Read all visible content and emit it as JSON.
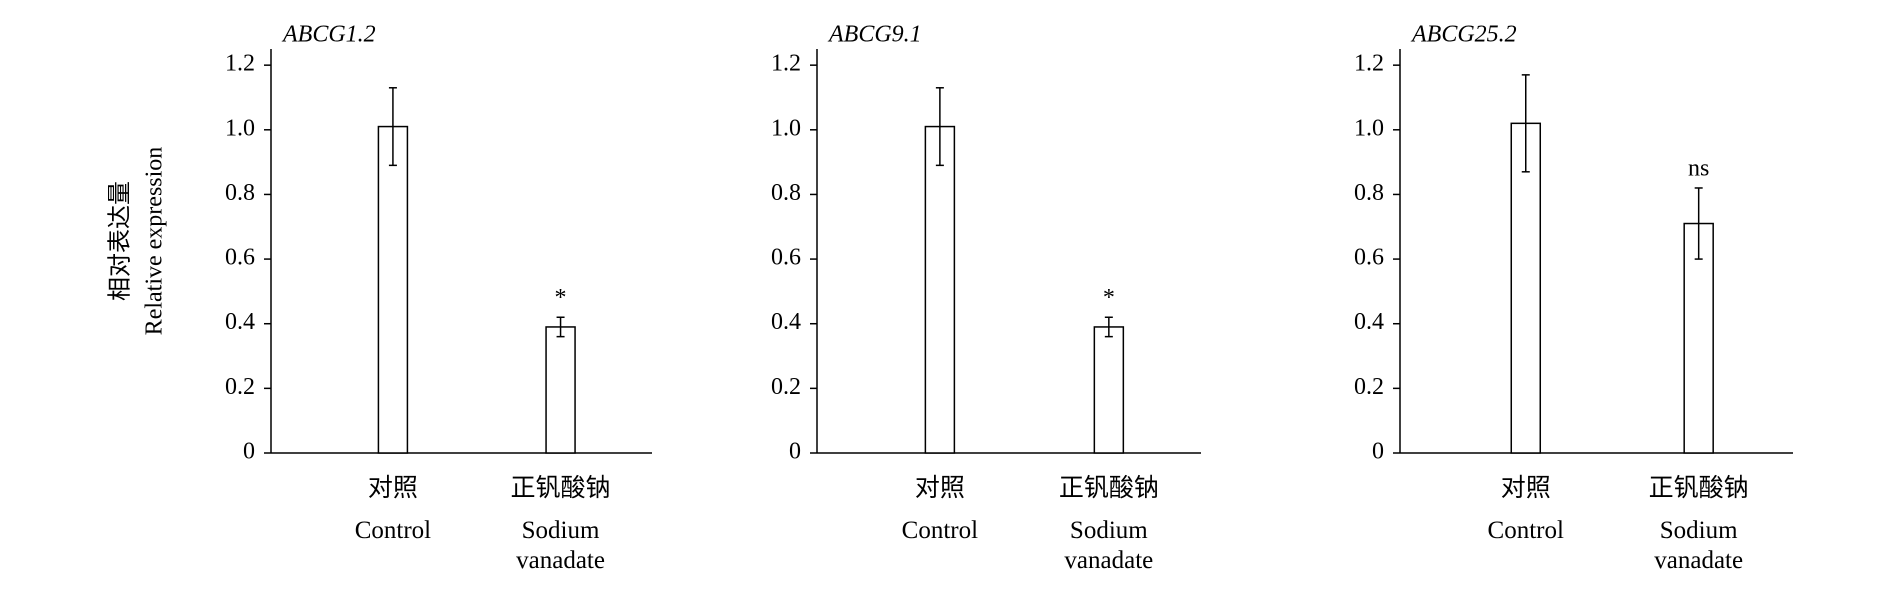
{
  "chart_data": [
    {
      "type": "bar",
      "title": "ABCG1.2",
      "ylabel": [
        "相对表达量",
        "Relative expression"
      ],
      "categories": [
        "对照",
        "正钒酸钠"
      ],
      "category_subtitles": [
        "Control",
        "Sodium vanadate"
      ],
      "values": [
        1.01,
        0.39
      ],
      "errors": [
        0.12,
        0.03
      ],
      "annotations": [
        null,
        "*"
      ],
      "color": "#ffffff",
      "ylim": [
        0,
        1.25
      ],
      "yticks": [
        0,
        0.2,
        0.4,
        0.6,
        0.8,
        {
          "value": 1,
          "label": "1.0"
        },
        1.2
      ]
    },
    {
      "type": "bar",
      "title": "ABCG9.1",
      "categories": [
        "对照",
        "正钒酸钠"
      ],
      "category_subtitles": [
        "Control",
        "Sodium vanadate"
      ],
      "values": [
        1.01,
        0.39
      ],
      "errors": [
        0.12,
        0.03
      ],
      "annotations": [
        null,
        "*"
      ],
      "color": "#ffffff",
      "ylim": [
        0,
        1.25
      ],
      "yticks": [
        0,
        0.2,
        0.4,
        0.6,
        0.8,
        {
          "value": 1,
          "label": "1.0"
        },
        1.2
      ]
    },
    {
      "type": "bar",
      "title": "ABCG25.2",
      "categories": [
        "对照",
        "正钒酸钠"
      ],
      "category_subtitles": [
        "Control",
        "Sodium vanadate"
      ],
      "values": [
        1.02,
        0.71
      ],
      "errors": [
        0.15,
        0.11
      ],
      "annotations": [
        null,
        "ns"
      ],
      "color": "#ffffff",
      "ylim": [
        0,
        1.25
      ],
      "yticks": [
        0,
        0.2,
        0.4,
        0.6,
        0.8,
        {
          "value": 1,
          "label": "1.0"
        },
        1.2
      ]
    }
  ]
}
